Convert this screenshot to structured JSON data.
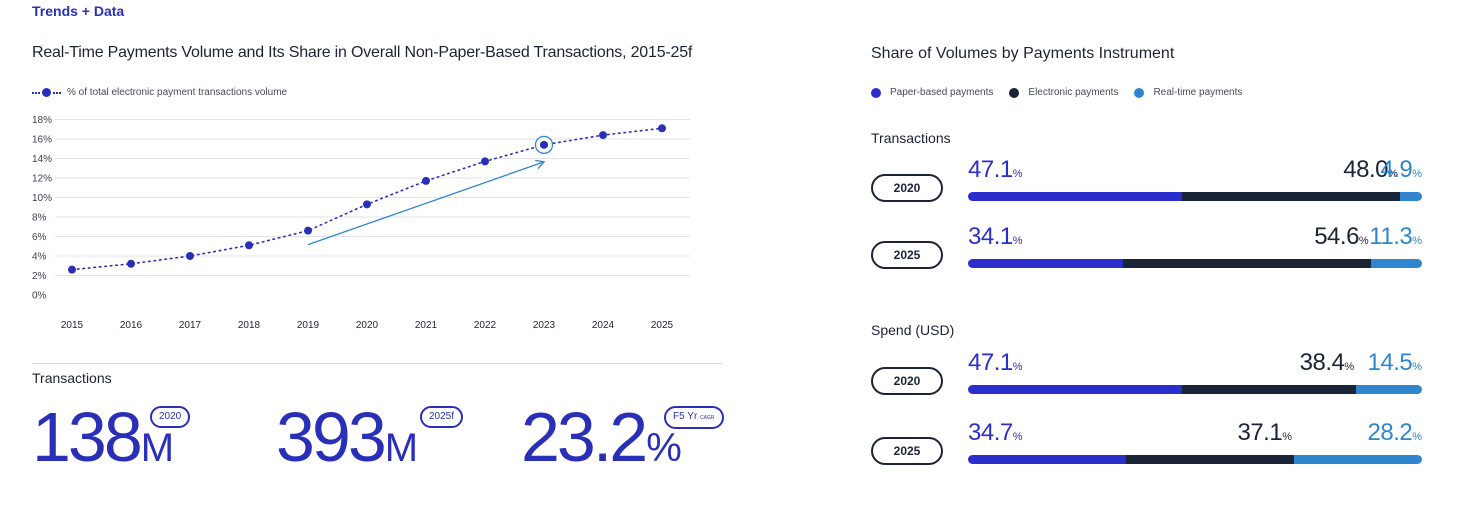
{
  "header": {
    "label": "Trends + Data"
  },
  "left_panel": {
    "title": "Real-Time Payments Volume and Its Share in Overall Non-Paper-Based Transactions, 2015-25f",
    "legend_label": "% of total electronic payment transactions volume",
    "transactions_label": "Transactions",
    "kpis": [
      {
        "value": "138",
        "unit": "M",
        "badge": "2020"
      },
      {
        "value": "393",
        "unit": "M",
        "badge": "2025f"
      },
      {
        "value": "23.2",
        "unit": "%",
        "badge": "F5 Yr",
        "badge_suffix": "CAGR"
      }
    ]
  },
  "chart_data": {
    "type": "line",
    "title": "Real-Time Payments Volume and Its Share in Overall Non-Paper-Based Transactions, 2015-25f",
    "series": [
      {
        "name": "% of total electronic payment transactions volume",
        "x": [
          "2015",
          "2016",
          "2017",
          "2018",
          "2019",
          "2020",
          "2021",
          "2022",
          "2023",
          "2024",
          "2025"
        ],
        "values": [
          2.6,
          3.2,
          4.0,
          5.1,
          6.6,
          9.3,
          11.7,
          13.7,
          15.4,
          16.4,
          17.1
        ]
      }
    ],
    "highlighted_point": "2023",
    "yticks": [
      "0%",
      "2%",
      "4%",
      "6%",
      "8%",
      "10%",
      "12%",
      "14%",
      "16%",
      "18%"
    ],
    "ylim": [
      0,
      18
    ],
    "xlabel": "",
    "ylabel": "",
    "grid": true,
    "legend": "top-left"
  },
  "right_panel": {
    "title": "Share of Volumes by Payments Instrument",
    "legend": [
      {
        "label": "Paper-based payments",
        "color": "#2a2fcb"
      },
      {
        "label": "Electronic payments",
        "color": "#1b2336"
      },
      {
        "label": "Real-time payments",
        "color": "#2f86cf"
      }
    ],
    "sections": [
      {
        "label": "Transactions",
        "rows": [
          {
            "year": "2020",
            "paper": 47.1,
            "electronic": 48.0,
            "realtime": 4.9,
            "paper_label": "47.1",
            "electronic_label": "48.0",
            "realtime_label": "4.9"
          },
          {
            "year": "2025",
            "paper": 34.1,
            "electronic": 54.6,
            "realtime": 11.3,
            "paper_label": "34.1",
            "electronic_label": "54.6",
            "realtime_label": "11.3"
          }
        ]
      },
      {
        "label": "Spend (USD)",
        "rows": [
          {
            "year": "2020",
            "paper": 47.1,
            "electronic": 38.4,
            "realtime": 14.5,
            "paper_label": "47.1",
            "electronic_label": "38.4",
            "realtime_label": "14.5"
          },
          {
            "year": "2025",
            "paper": 34.7,
            "electronic": 37.1,
            "realtime": 28.2,
            "paper_label": "34.7",
            "electronic_label": "37.1",
            "realtime_label": "28.2"
          }
        ]
      }
    ],
    "percent_sign": "%"
  }
}
